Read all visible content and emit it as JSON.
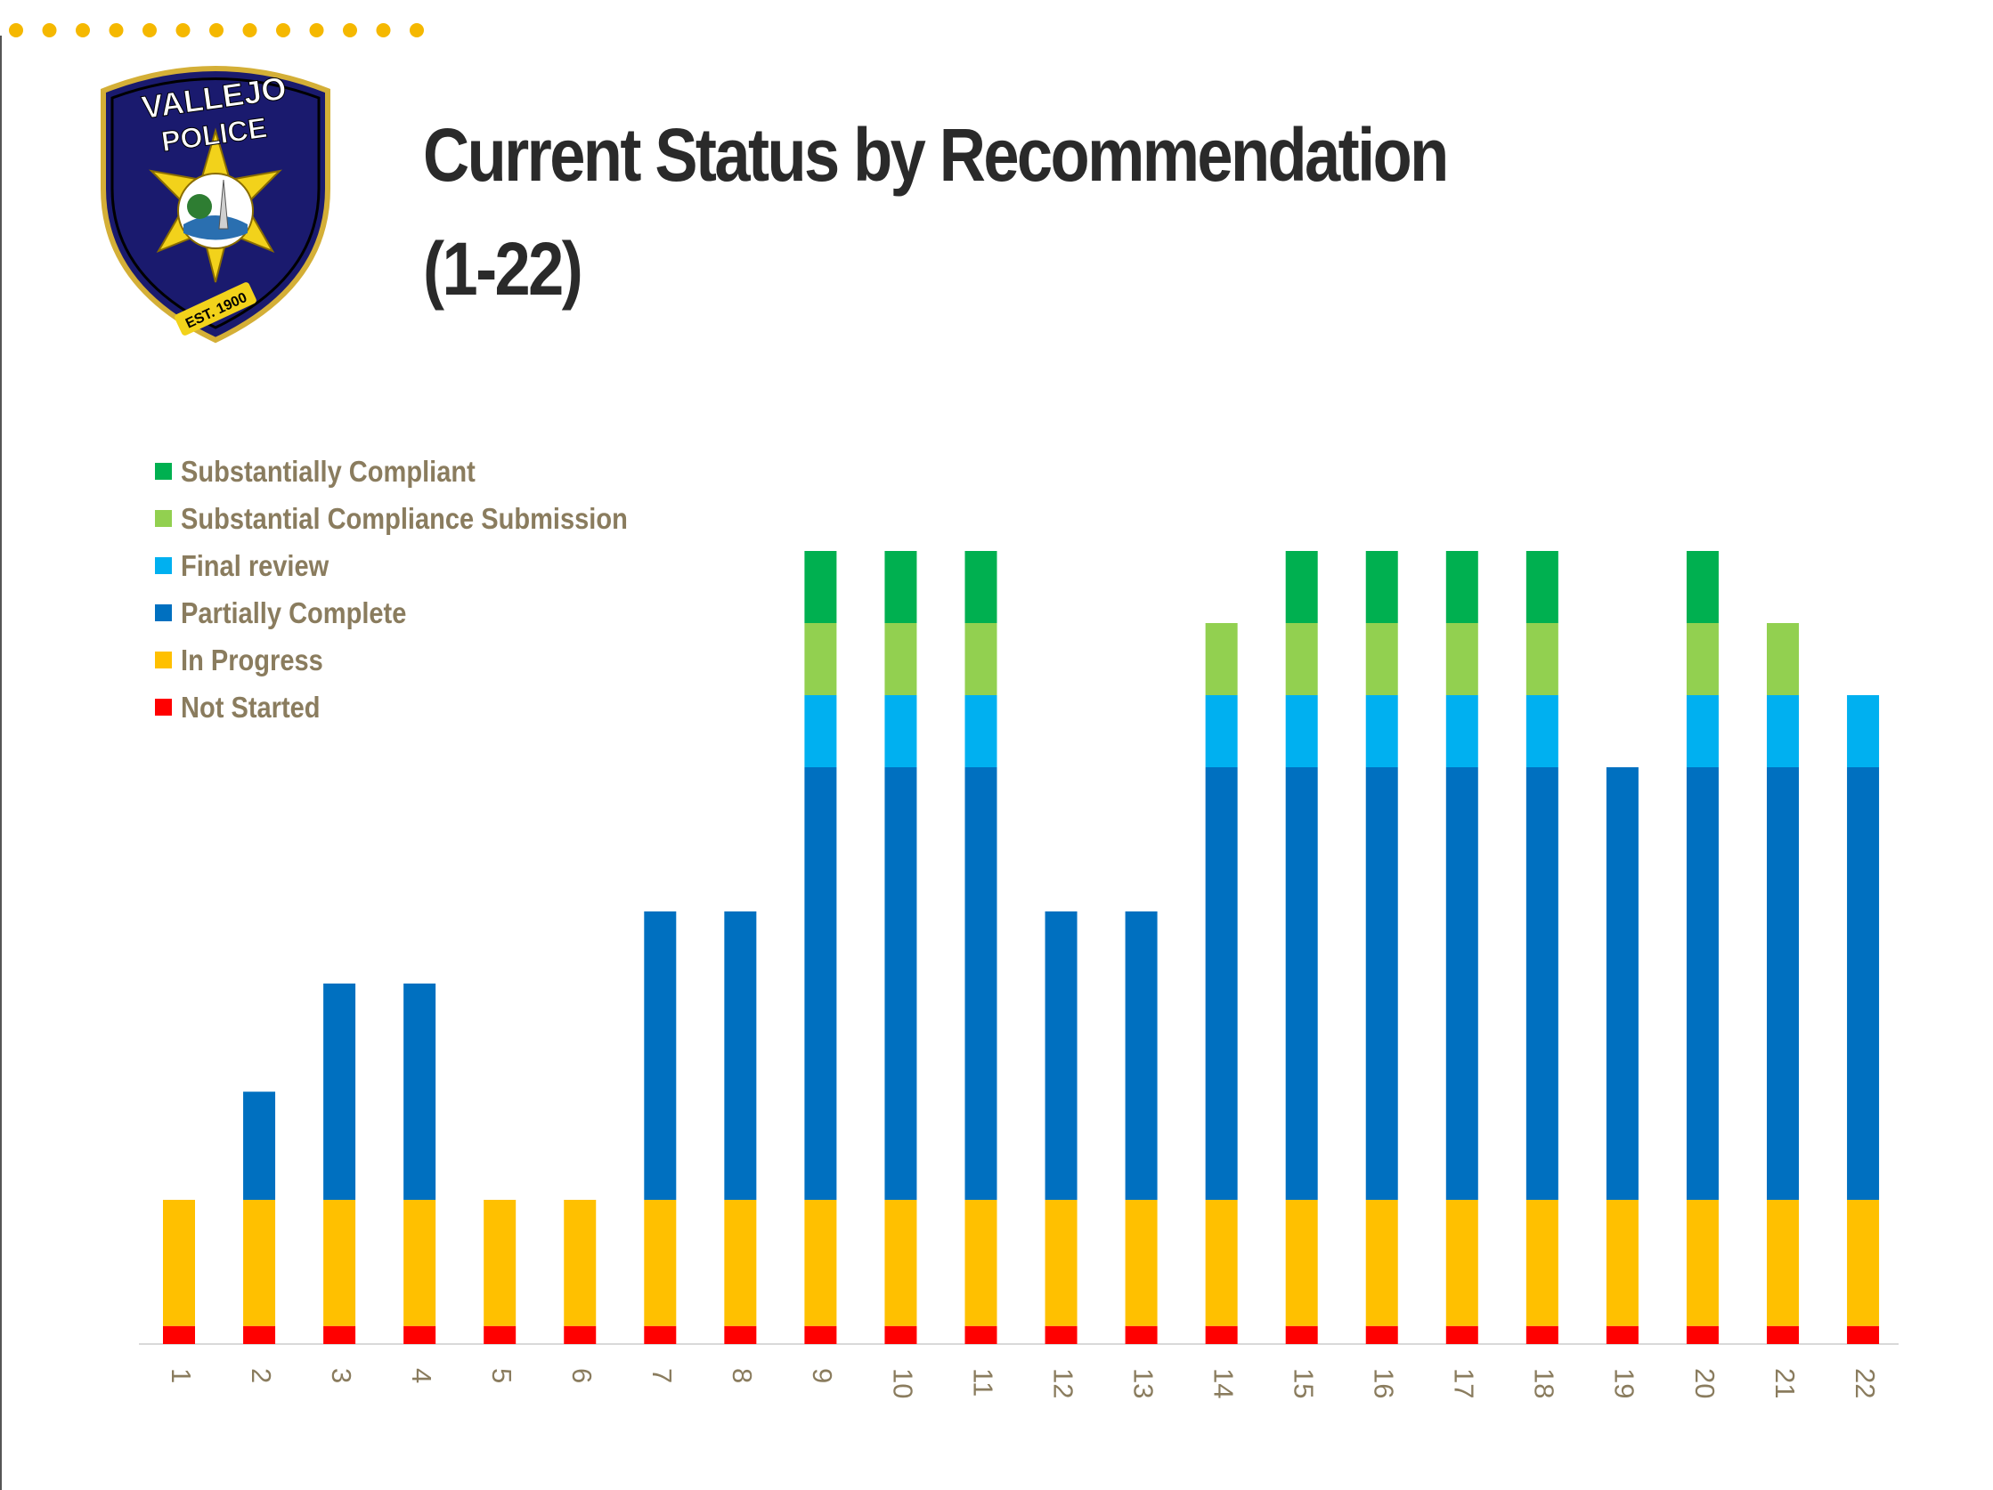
{
  "page": {
    "title_line1": "Current Status by Recommendation",
    "title_line2": "(1-22)"
  },
  "logo": {
    "text_top": "VALLEJO",
    "text_mid": "POLICE",
    "text_bottom": "EST. 1900"
  },
  "colors": {
    "dots": "#F5B800",
    "title": "#2a2a2a",
    "label": "#8a7c5e",
    "axis": "#d9d9d9"
  },
  "chart_data": {
    "type": "bar",
    "stacked": true,
    "title": "Current Status by Recommendation (1-22)",
    "xlabel": "",
    "ylabel": "",
    "legend_position": "top-left",
    "tick_rotation": "90",
    "categories": [
      "1",
      "2",
      "3",
      "4",
      "5",
      "6",
      "7",
      "8",
      "9",
      "10",
      "11",
      "12",
      "13",
      "14",
      "15",
      "16",
      "17",
      "18",
      "19",
      "20",
      "21",
      "22"
    ],
    "series": [
      {
        "name": "Not Started",
        "color": "#FF0000",
        "values": [
          0.25,
          0.25,
          0.25,
          0.25,
          0.25,
          0.25,
          0.25,
          0.25,
          0.25,
          0.25,
          0.25,
          0.25,
          0.25,
          0.25,
          0.25,
          0.25,
          0.25,
          0.25,
          0.25,
          0.25,
          0.25,
          0.25
        ]
      },
      {
        "name": "In Progress",
        "color": "#FFC000",
        "values": [
          1.75,
          1.75,
          1.75,
          1.75,
          1.75,
          1.75,
          1.75,
          1.75,
          1.75,
          1.75,
          1.75,
          1.75,
          1.75,
          1.75,
          1.75,
          1.75,
          1.75,
          1.75,
          1.75,
          1.75,
          1.75,
          1.75
        ]
      },
      {
        "name": "Partially Complete",
        "color": "#0070C0",
        "values": [
          0,
          1.5,
          3,
          3,
          0,
          0,
          4,
          4,
          6,
          6,
          6,
          4,
          4,
          6,
          6,
          6,
          6,
          6,
          6,
          6,
          6,
          6
        ]
      },
      {
        "name": "Final review",
        "color": "#00B0F0",
        "values": [
          0,
          0,
          0,
          0,
          0,
          0,
          0,
          0,
          1,
          1,
          1,
          0,
          0,
          1,
          1,
          1,
          1,
          1,
          0,
          1,
          1,
          1
        ]
      },
      {
        "name": "Substantial Compliance Submission",
        "color": "#92D050",
        "values": [
          0,
          0,
          0,
          0,
          0,
          0,
          0,
          0,
          1,
          1,
          1,
          0,
          0,
          1,
          1,
          1,
          1,
          1,
          0,
          1,
          1,
          0
        ]
      },
      {
        "name": "Substantially Compliant",
        "color": "#00B050",
        "values": [
          0,
          0,
          0,
          0,
          0,
          0,
          0,
          0,
          1,
          1,
          1,
          0,
          0,
          0,
          1,
          1,
          1,
          1,
          0,
          1,
          0,
          0
        ]
      }
    ],
    "legend_order": [
      "Substantially Compliant",
      "Substantial Compliance Submission",
      "Final review",
      "Partially Complete",
      "In Progress",
      "Not Started"
    ],
    "ylim": [
      0,
      11
    ]
  }
}
